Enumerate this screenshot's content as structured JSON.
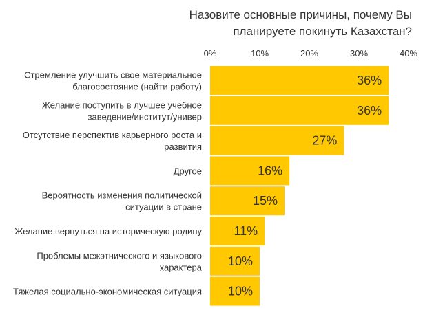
{
  "chart_data": {
    "type": "bar",
    "orientation": "horizontal",
    "title": [
      "Назовите основные причины, почему Вы",
      "планируете покинуть Казахстан?"
    ],
    "categories": [
      [
        "Стремление улучшить свое материальное",
        "благосостояние (найти работу)"
      ],
      [
        "Желание поступить в лучшее учебное",
        "заведение/институт/универ"
      ],
      [
        "Отсутствие перспектив карьерного роста и",
        "развития"
      ],
      [
        "Другое"
      ],
      [
        "Вероятность изменения политической",
        "ситуации в стране"
      ],
      [
        "Желание вернуться на историческую родину"
      ],
      [
        "Проблемы межэтнического и языкового",
        "характера"
      ],
      [
        "Тяжелая социально-экономическая ситуация"
      ]
    ],
    "values": [
      36,
      36,
      27,
      16,
      15,
      11,
      10,
      10
    ],
    "data_labels": [
      "36%",
      "36%",
      "27%",
      "16%",
      "15%",
      "11%",
      "10%",
      "10%"
    ],
    "xlim": [
      0,
      40
    ],
    "xticks": [
      0,
      10,
      20,
      30,
      40
    ],
    "xtick_labels": [
      "0%",
      "10%",
      "20%",
      "30%",
      "40%"
    ],
    "axis_position": "top",
    "grid": false,
    "legend": "none",
    "bar_color": "#FFC800",
    "text_color": "#333333"
  }
}
